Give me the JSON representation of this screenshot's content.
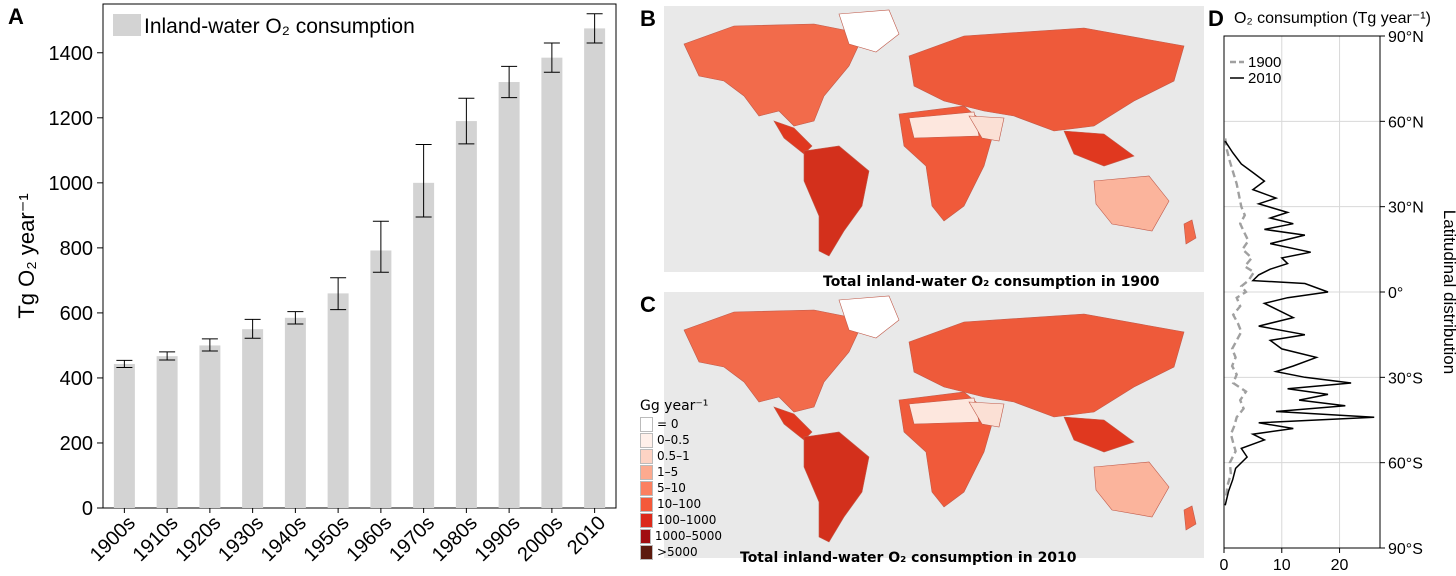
{
  "panels": {
    "a": "A",
    "b": "B",
    "c": "C",
    "d": "D"
  },
  "chart_data": [
    {
      "type": "bar",
      "panel": "A",
      "categories": [
        "1900s",
        "1910s",
        "1920s",
        "1930s",
        "1940s",
        "1950s",
        "1960s",
        "1970s",
        "1980s",
        "1990s",
        "2000s",
        "2010"
      ],
      "values": [
        443,
        467,
        500,
        550,
        585,
        660,
        792,
        1000,
        1190,
        1310,
        1385,
        1475
      ],
      "error_low": [
        432,
        455,
        483,
        522,
        566,
        610,
        725,
        895,
        1120,
        1262,
        1340,
        1430
      ],
      "error_high": [
        454,
        480,
        520,
        580,
        604,
        708,
        882,
        1118,
        1260,
        1358,
        1430,
        1520
      ],
      "ylabel": "Tg O₂ year⁻¹",
      "ylim": [
        0,
        1550
      ],
      "yticks": [
        0,
        200,
        400,
        600,
        800,
        1000,
        1200,
        1400
      ],
      "legend": "Inland-water O₂ consumption",
      "bar_color": "#d3d3d3"
    },
    {
      "type": "line",
      "panel": "D",
      "title": "O₂ consumption (Tg year⁻¹)",
      "ylabel": "Latitudinal distribution",
      "xlim": [
        0,
        27
      ],
      "xticks": [
        0,
        10,
        20
      ],
      "ylim": [
        -90,
        90
      ],
      "yticks": [
        90,
        60,
        30,
        0,
        -30,
        -60,
        -90
      ],
      "ytick_labels": [
        "90°N",
        "60°N",
        "30°N",
        "0°",
        "30°S",
        "60°S",
        "90°S"
      ],
      "legend_position": "top-left",
      "series": [
        {
          "name": "1900",
          "color": "#a0a0a0",
          "dashed": true,
          "points": [
            [
              0.2,
              54
            ],
            [
              0.5,
              50
            ],
            [
              1.0,
              46
            ],
            [
              1.6,
              42
            ],
            [
              2.2,
              38
            ],
            [
              2.6,
              34
            ],
            [
              3.0,
              30
            ],
            [
              3.6,
              27
            ],
            [
              2.8,
              24
            ],
            [
              3.5,
              21
            ],
            [
              4.2,
              18
            ],
            [
              3.2,
              15
            ],
            [
              4.8,
              12
            ],
            [
              3.6,
              9
            ],
            [
              5.2,
              7
            ],
            [
              4.2,
              4
            ],
            [
              3.0,
              2
            ],
            [
              3.8,
              0
            ],
            [
              2.2,
              -2
            ],
            [
              2.8,
              -5
            ],
            [
              1.6,
              -8
            ],
            [
              2.4,
              -11
            ],
            [
              3.0,
              -14
            ],
            [
              2.2,
              -17
            ],
            [
              1.4,
              -20
            ],
            [
              2.0,
              -23
            ],
            [
              1.4,
              -26
            ],
            [
              2.2,
              -29
            ],
            [
              1.6,
              -32
            ],
            [
              3.8,
              -35
            ],
            [
              2.8,
              -38
            ],
            [
              3.4,
              -41
            ],
            [
              2.2,
              -44
            ],
            [
              1.8,
              -47
            ],
            [
              1.2,
              -50
            ],
            [
              1.6,
              -53
            ],
            [
              2.0,
              -56
            ],
            [
              1.0,
              -60
            ],
            [
              1.2,
              -64
            ],
            [
              0.6,
              -68
            ],
            [
              0.3,
              -73
            ]
          ]
        },
        {
          "name": "2010",
          "color": "#000000",
          "dashed": false,
          "points": [
            [
              0.2,
              53
            ],
            [
              1.5,
              49
            ],
            [
              3.0,
              45
            ],
            [
              5.0,
              42
            ],
            [
              7.0,
              39
            ],
            [
              5.0,
              36
            ],
            [
              9.0,
              33
            ],
            [
              6.0,
              31
            ],
            [
              11.0,
              28
            ],
            [
              8.0,
              26
            ],
            [
              12.0,
              24
            ],
            [
              7.0,
              22
            ],
            [
              14.0,
              20
            ],
            [
              8.0,
              17
            ],
            [
              15.0,
              14
            ],
            [
              10.0,
              12
            ],
            [
              11.0,
              10
            ],
            [
              8.0,
              8
            ],
            [
              6.0,
              6
            ],
            [
              5.0,
              4
            ],
            [
              14.0,
              3
            ],
            [
              18.0,
              0
            ],
            [
              11.0,
              -2
            ],
            [
              7.0,
              -4
            ],
            [
              10.0,
              -7
            ],
            [
              12.0,
              -9
            ],
            [
              6.0,
              -12
            ],
            [
              14.0,
              -15
            ],
            [
              8.0,
              -17
            ],
            [
              10.0,
              -20
            ],
            [
              16.0,
              -23
            ],
            [
              12.0,
              -26
            ],
            [
              9.0,
              -28
            ],
            [
              14.0,
              -30
            ],
            [
              22.0,
              -32
            ],
            [
              11.0,
              -34
            ],
            [
              18.0,
              -36
            ],
            [
              13.0,
              -38
            ],
            [
              21.0,
              -40
            ],
            [
              9.0,
              -42
            ],
            [
              26.0,
              -44
            ],
            [
              6.0,
              -46
            ],
            [
              12.0,
              -48
            ],
            [
              5.0,
              -50
            ],
            [
              7.0,
              -52
            ],
            [
              3.0,
              -55
            ],
            [
              4.0,
              -58
            ],
            [
              2.0,
              -62
            ],
            [
              1.5,
              -66
            ],
            [
              0.8,
              -70
            ],
            [
              0.2,
              -75
            ]
          ]
        }
      ]
    }
  ],
  "maps": [
    {
      "panel": "B",
      "caption": "Total inland-water O₂ consumption in 1900"
    },
    {
      "panel": "C",
      "caption": "Total inland-water O₂ consumption in 2010"
    }
  ],
  "map_legend": {
    "title": "Gg year⁻¹",
    "items": [
      {
        "label": "= 0",
        "color": "#ffffff"
      },
      {
        "label": "0–0.5",
        "color": "#fff0ea"
      },
      {
        "label": "0.5–1",
        "color": "#fdd3c4"
      },
      {
        "label": "1–5",
        "color": "#fcaa8f"
      },
      {
        "label": "5–10",
        "color": "#fb8060"
      },
      {
        "label": "10–100",
        "color": "#f4593a"
      },
      {
        "label": "100–1000",
        "color": "#dc2a1b"
      },
      {
        "label": "1000–5000",
        "color": "#a10d10"
      },
      {
        "label": ">5000",
        "color": "#5c1a0e"
      }
    ]
  }
}
